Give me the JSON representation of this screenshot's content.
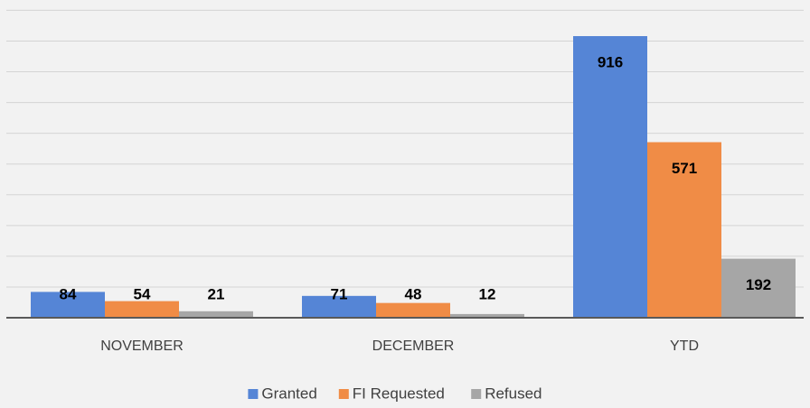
{
  "chart_data": {
    "type": "bar",
    "categories": [
      "NOVEMBER",
      "DECEMBER",
      "YTD"
    ],
    "series": [
      {
        "name": "Granted",
        "color": "#5585d6",
        "values": [
          84,
          71,
          916
        ]
      },
      {
        "name": "FI Requested",
        "color": "#f08c46",
        "values": [
          54,
          48,
          571
        ]
      },
      {
        "name": "Refused",
        "color": "#a6a6a6",
        "values": [
          21,
          12,
          192
        ]
      }
    ],
    "ylim": [
      0,
      1000
    ],
    "yticks": [
      0,
      100,
      200,
      300,
      400,
      500,
      600,
      700,
      800,
      900,
      1000
    ],
    "grid": true,
    "legend": "bottom"
  }
}
